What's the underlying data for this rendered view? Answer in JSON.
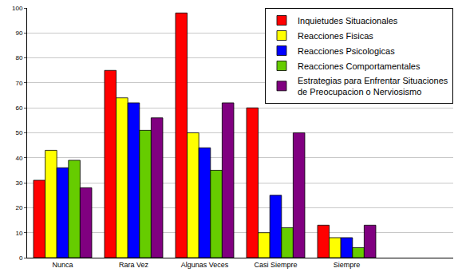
{
  "chart_data": {
    "type": "bar",
    "categories": [
      "Nunca",
      "Rara Vez",
      "Algunas Veces",
      "Casi Siempre",
      "Siempre"
    ],
    "series": [
      {
        "name": "Inquietudes Situacionales",
        "color": "#ff0000",
        "values": [
          31,
          75,
          98,
          60,
          13
        ]
      },
      {
        "name": "Reacciones Fisicas",
        "color": "#ffff00",
        "values": [
          43,
          64,
          50,
          10,
          8
        ]
      },
      {
        "name": "Reacciones Psicologicas",
        "color": "#0000ff",
        "values": [
          36,
          62,
          44,
          25,
          8
        ]
      },
      {
        "name": "Reacciones Comportamentales",
        "color": "#66cc00",
        "values": [
          39,
          51,
          35,
          12,
          4
        ]
      },
      {
        "name": "Estrategias para Enfrentar Situaciones de Preocupacion o Nerviosismo",
        "color": "#800080",
        "values": [
          28,
          56,
          62,
          50,
          13
        ]
      }
    ],
    "ylim": [
      0,
      100
    ],
    "yticks": [
      0,
      10,
      20,
      30,
      40,
      50,
      60,
      70,
      80,
      90,
      100
    ],
    "grid": true,
    "legend": "top-right"
  }
}
